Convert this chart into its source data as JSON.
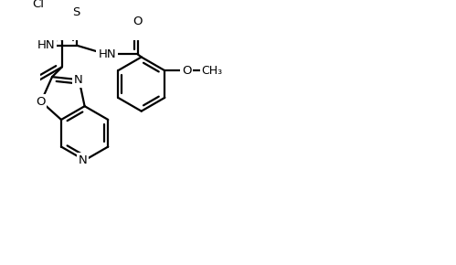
{
  "bg_color": "#ffffff",
  "line_color": "#000000",
  "line_width": 1.6,
  "font_size": 9.5,
  "fig_width": 4.99,
  "fig_height": 2.9,
  "dpi": 100,
  "xlim": [
    0,
    10.5
  ],
  "ylim": [
    0,
    6.2
  ]
}
